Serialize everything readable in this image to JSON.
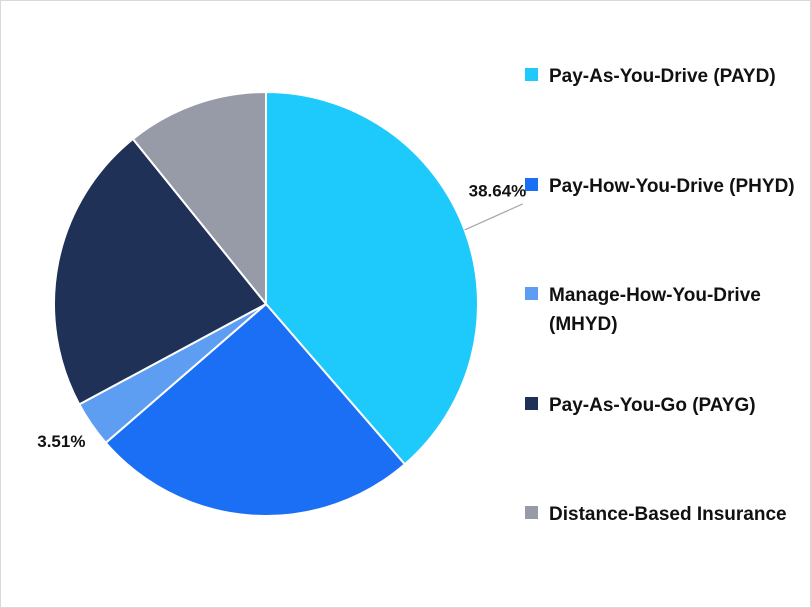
{
  "chart_data": {
    "type": "pie",
    "categories": [
      "Pay-As-You-Drive (PAYD)",
      "Pay-How-You-Drive (PHYD)",
      "Manage-How-You-Drive (MHYD)",
      "Pay-As-You-Go (PAYG)",
      "Distance-Based Insurance"
    ],
    "values": [
      38.64,
      25.0,
      3.51,
      22.05,
      10.8
    ],
    "value_labels": [
      "38.64%",
      null,
      "3.51%",
      null,
      null
    ],
    "colors": [
      "#1ecafb",
      "#1a6ff4",
      "#5e9ef2",
      "#1f3156",
      "#979ba8"
    ],
    "legend": "right"
  }
}
